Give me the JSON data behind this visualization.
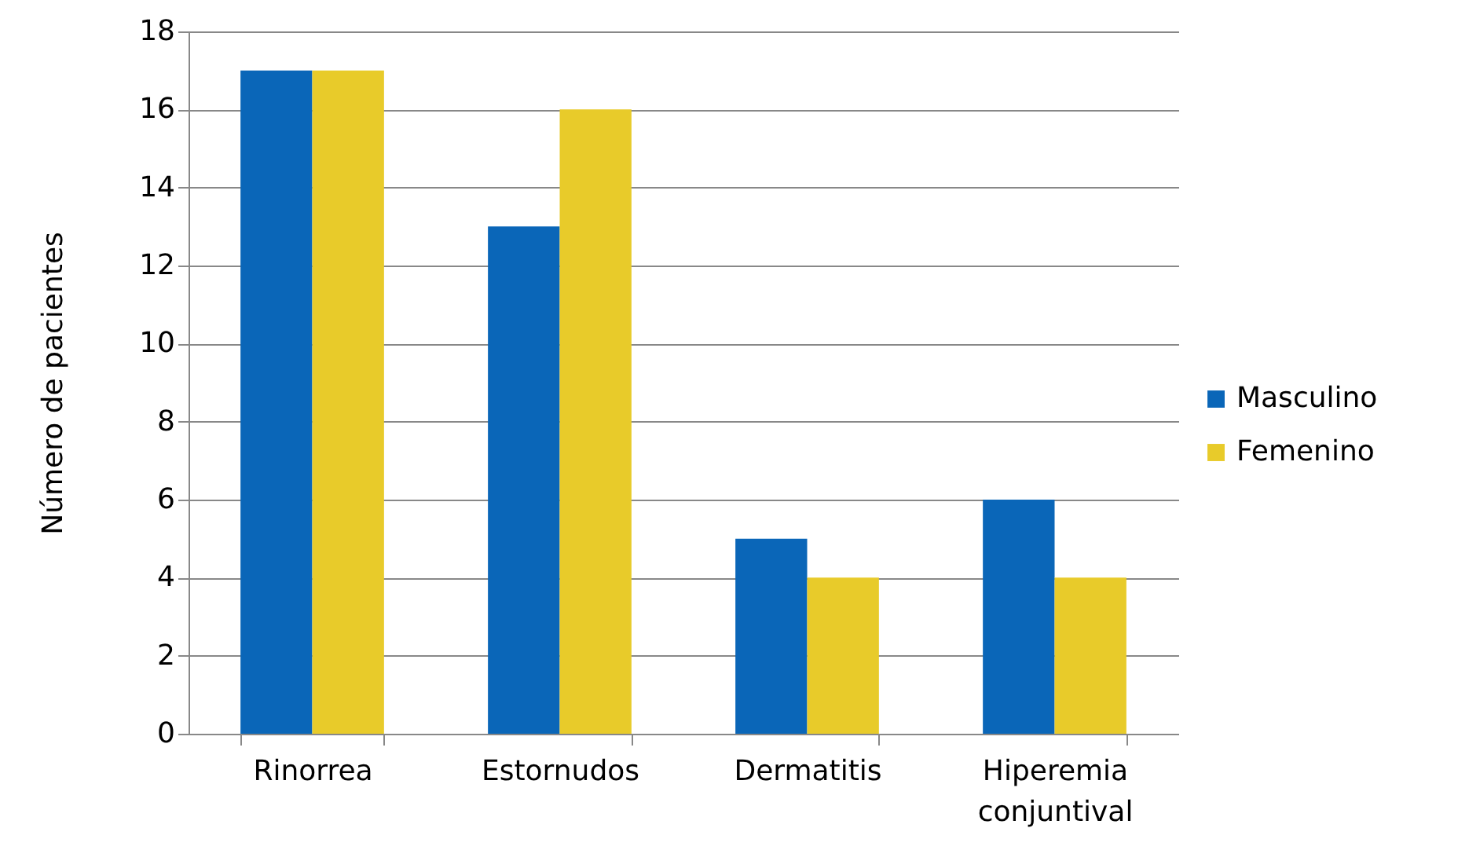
{
  "chart_data": {
    "type": "bar",
    "ylabel": "Número de pacientes",
    "categories": [
      "Rinorrea",
      "Estornudos",
      "Dermatitis",
      "Hiperemia conjuntival"
    ],
    "series": [
      {
        "name": "Masculino",
        "color": "#0a66b8",
        "values": [
          17,
          13,
          5,
          6
        ]
      },
      {
        "name": "Femenino",
        "color": "#e8cb2a",
        "values": [
          17,
          16,
          4,
          4
        ]
      }
    ],
    "ylim": [
      0,
      18
    ],
    "yticks": [
      0,
      2,
      4,
      6,
      8,
      10,
      12,
      14,
      16,
      18
    ],
    "grid": "y",
    "legend": "right"
  }
}
